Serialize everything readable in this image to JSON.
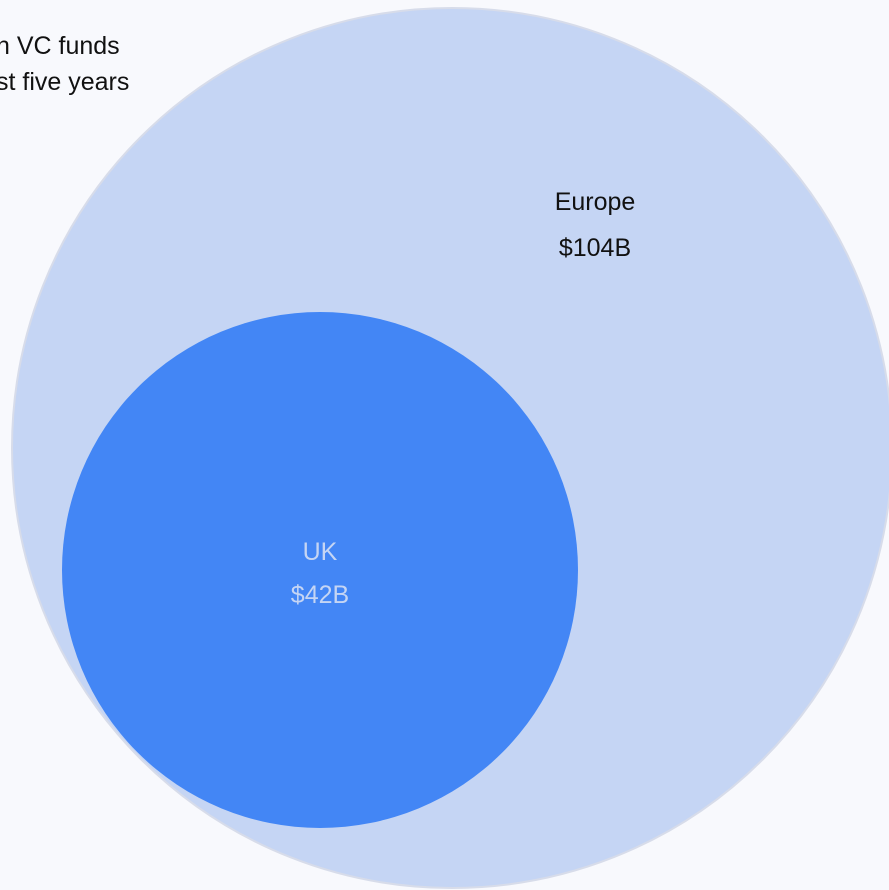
{
  "caption": {
    "line1": "n VC funds",
    "line2": "st five years"
  },
  "chart_data": {
    "type": "nested-bubble",
    "unit": "USD billions",
    "series": [
      {
        "label": "Europe",
        "value": 104,
        "value_label": "$104B",
        "color": "#c5d5f4",
        "label_color": "#111111"
      },
      {
        "label": "UK",
        "value": 42,
        "value_label": "$42B",
        "color": "#4386f5",
        "label_color": "#c5d5f4"
      }
    ]
  }
}
